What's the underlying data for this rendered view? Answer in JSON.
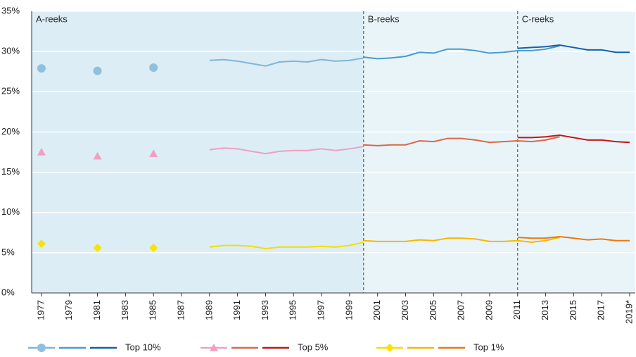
{
  "chart_data": {
    "type": "line",
    "xlim": [
      1976.3,
      2019.4
    ],
    "ylim": [
      0,
      35
    ],
    "xticks": [
      1977,
      1979,
      1981,
      1983,
      1985,
      1987,
      1989,
      1991,
      1993,
      1995,
      1997,
      1999,
      2001,
      2003,
      2005,
      2007,
      2009,
      2011,
      2013,
      2015,
      2017,
      {
        "value": 2019,
        "label": "2019*"
      }
    ],
    "yticks": [
      {
        "value": 0,
        "label": "0%"
      },
      {
        "value": 5,
        "label": "5%"
      },
      {
        "value": 10,
        "label": "10%"
      },
      {
        "value": 15,
        "label": "15%"
      },
      {
        "value": 20,
        "label": "20%"
      },
      {
        "value": 25,
        "label": "25%"
      },
      {
        "value": 30,
        "label": "30%"
      },
      {
        "value": 35,
        "label": "35%"
      }
    ],
    "grid": true,
    "regions": [
      {
        "label": "A-reeks",
        "start": 1976.3,
        "color": "#dcedf5"
      },
      {
        "label": "B-reeks",
        "start": 2000,
        "color": "#e9f4f9"
      },
      {
        "label": "C-reeks",
        "start": 2011,
        "color": "#e9f4f9"
      }
    ],
    "series": [
      {
        "name": "Top 10%",
        "marker": "circle",
        "points": {
          "color": "#8fc0df",
          "x": [
            1977,
            1981,
            1985
          ],
          "values": [
            27.9,
            27.6,
            28.0
          ]
        },
        "lines": [
          {
            "color": "#7fb6d9",
            "x": [
              1989,
              1990,
              1991,
              1992,
              1993,
              1994,
              1995,
              1996,
              1997,
              1998,
              1999,
              2000
            ],
            "values": [
              28.9,
              29.0,
              28.8,
              28.5,
              28.2,
              28.7,
              28.8,
              28.7,
              29.0,
              28.8,
              28.9,
              29.2
            ]
          },
          {
            "color": "#4a9cc9",
            "x": [
              2000,
              2001,
              2002,
              2003,
              2004,
              2005,
              2006,
              2007,
              2008,
              2009,
              2010,
              2011,
              2012,
              2013,
              2014
            ],
            "values": [
              29.3,
              29.1,
              29.2,
              29.4,
              29.9,
              29.8,
              30.3,
              30.3,
              30.1,
              29.8,
              29.9,
              30.1,
              30.1,
              30.3,
              30.7
            ]
          },
          {
            "color": "#1560a8",
            "x": [
              2011,
              2012,
              2013,
              2014,
              2015,
              2016,
              2017,
              2018,
              2019
            ],
            "values": [
              30.4,
              30.5,
              30.6,
              30.8,
              30.5,
              30.2,
              30.2,
              29.9,
              29.9
            ]
          }
        ]
      },
      {
        "name": "Top 5%",
        "marker": "triangle",
        "points": {
          "color": "#f0a0c0",
          "x": [
            1977,
            1981,
            1985
          ],
          "values": [
            17.5,
            17.0,
            17.3
          ]
        },
        "lines": [
          {
            "color": "#f0a0c0",
            "x": [
              1989,
              1990,
              1991,
              1992,
              1993,
              1994,
              1995,
              1996,
              1997,
              1998,
              1999,
              2000
            ],
            "values": [
              17.8,
              18.0,
              17.9,
              17.6,
              17.3,
              17.6,
              17.7,
              17.7,
              17.9,
              17.7,
              17.9,
              18.2
            ]
          },
          {
            "color": "#d9694a",
            "x": [
              2000,
              2001,
              2002,
              2003,
              2004,
              2005,
              2006,
              2007,
              2008,
              2009,
              2010,
              2011,
              2012,
              2013,
              2014
            ],
            "values": [
              18.4,
              18.3,
              18.4,
              18.4,
              18.9,
              18.8,
              19.2,
              19.2,
              19.0,
              18.7,
              18.8,
              18.9,
              18.8,
              19.0,
              19.4
            ]
          },
          {
            "color": "#c4161c",
            "x": [
              2011,
              2012,
              2013,
              2014,
              2015,
              2016,
              2017,
              2018,
              2019
            ],
            "values": [
              19.3,
              19.3,
              19.4,
              19.6,
              19.3,
              19.0,
              19.0,
              18.8,
              18.7
            ]
          }
        ]
      },
      {
        "name": "Top 1%",
        "marker": "diamond",
        "points": {
          "color": "#f5e400",
          "x": [
            1977,
            1981,
            1985
          ],
          "values": [
            6.1,
            5.6,
            5.6
          ]
        },
        "lines": [
          {
            "color": "#f5dd00",
            "x": [
              1989,
              1990,
              1991,
              1992,
              1993,
              1994,
              1995,
              1996,
              1997,
              1998,
              1999,
              2000
            ],
            "values": [
              5.7,
              5.9,
              5.9,
              5.8,
              5.5,
              5.7,
              5.7,
              5.7,
              5.8,
              5.7,
              5.9,
              6.3
            ]
          },
          {
            "color": "#f5b800",
            "x": [
              2000,
              2001,
              2002,
              2003,
              2004,
              2005,
              2006,
              2007,
              2008,
              2009,
              2010,
              2011,
              2012,
              2013,
              2014
            ],
            "values": [
              6.5,
              6.4,
              6.4,
              6.4,
              6.6,
              6.5,
              6.8,
              6.8,
              6.7,
              6.4,
              6.4,
              6.5,
              6.3,
              6.5,
              6.9
            ]
          },
          {
            "color": "#e87a10",
            "x": [
              2011,
              2012,
              2013,
              2014,
              2015,
              2016,
              2017,
              2018,
              2019
            ],
            "values": [
              6.9,
              6.8,
              6.8,
              7.0,
              6.8,
              6.6,
              6.7,
              6.5,
              6.5
            ]
          }
        ]
      }
    ]
  }
}
